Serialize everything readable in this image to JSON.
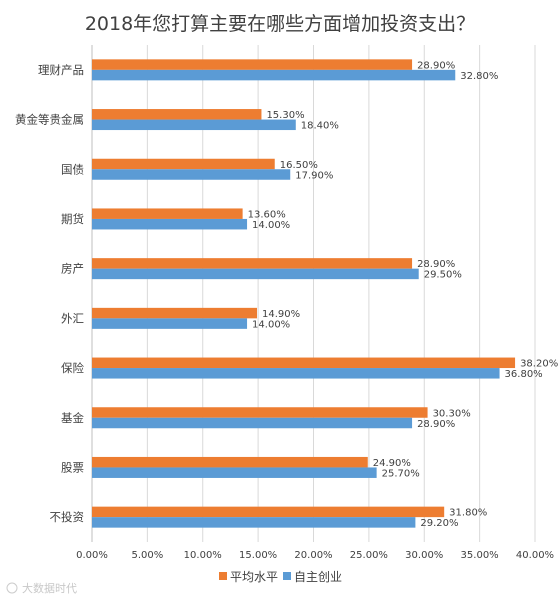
{
  "chart_data": {
    "type": "bar",
    "orientation": "horizontal",
    "title": "2018年您打算主要在哪些方面增加投资支出？",
    "categories": [
      "理财产品",
      "黄金等贵金属",
      "国债",
      "期货",
      "房产",
      "外汇",
      "保险",
      "基金",
      "股票",
      "不投资"
    ],
    "series": [
      {
        "name": "平均水平",
        "color": "#ED7D31",
        "values": [
          28.9,
          15.3,
          16.5,
          13.6,
          28.9,
          14.9,
          38.2,
          30.3,
          24.9,
          31.8
        ],
        "labels": [
          "28.90%",
          "15.30%",
          "16.50%",
          "13.60%",
          "28.90%",
          "14.90%",
          "38.20%",
          "30.30%",
          "24.90%",
          "31.80%"
        ]
      },
      {
        "name": "自主创业",
        "color": "#5B9BD5",
        "values": [
          32.8,
          18.4,
          17.9,
          14.0,
          29.5,
          14.0,
          36.8,
          28.9,
          25.7,
          29.2
        ],
        "labels": [
          "32.80%",
          "18.40%",
          "17.90%",
          "14.00%",
          "29.50%",
          "14.00%",
          "36.80%",
          "28.90%",
          "25.70%",
          "29.20%"
        ]
      }
    ],
    "xlim": [
      0,
      40
    ],
    "xticks": [
      "0.00%",
      "5.00%",
      "10.00%",
      "15.00%",
      "20.00%",
      "25.00%",
      "30.00%",
      "35.00%",
      "40.00%"
    ],
    "grid": "vertical",
    "legend": "bottom"
  },
  "watermark": "大数据时代"
}
